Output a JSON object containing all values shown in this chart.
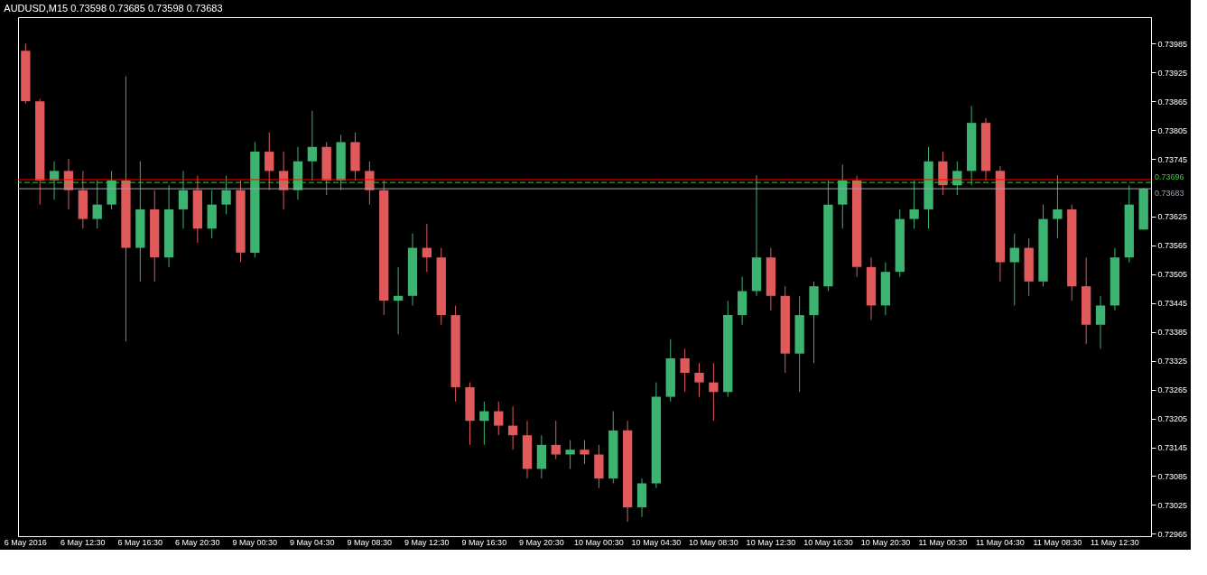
{
  "chart_data": {
    "type": "candlestick",
    "title": "AUDUSD,M15 0.73598 0.73685 0.73598 0.73683",
    "categories": [
      "6 May 2016",
      null,
      null,
      null,
      "6 May 12:30",
      null,
      null,
      null,
      "6 May 16:30",
      null,
      null,
      null,
      "6 May 20:30",
      null,
      null,
      null,
      "9 May 00:30",
      null,
      null,
      null,
      "9 May 04:30",
      null,
      null,
      null,
      "9 May 08:30",
      null,
      null,
      null,
      "9 May 12:30",
      null,
      null,
      null,
      "9 May 16:30",
      null,
      null,
      null,
      "9 May 20:30",
      null,
      null,
      null,
      "10 May 00:30",
      null,
      null,
      null,
      "10 May 04:30",
      null,
      null,
      null,
      "10 May 08:30",
      null,
      null,
      null,
      "10 May 12:30",
      null,
      null,
      null,
      "10 May 16:30",
      null,
      null,
      null,
      "10 May 20:30",
      null,
      null,
      null,
      "11 May 00:30",
      null,
      null,
      null,
      "11 May 04:30",
      null,
      null,
      null,
      "11 May 08:30",
      null,
      null,
      null,
      "11 May 12:30",
      null,
      null
    ],
    "ohlc": [
      [
        0.7397,
        0.73985,
        0.7386,
        0.73865
      ],
      [
        0.73865,
        0.7387,
        0.7365,
        0.737
      ],
      [
        0.737,
        0.7374,
        0.7366,
        0.7372
      ],
      [
        0.7372,
        0.73745,
        0.7364,
        0.7368
      ],
      [
        0.7368,
        0.7372,
        0.736,
        0.7362
      ],
      [
        0.7362,
        0.737,
        0.736,
        0.7365
      ],
      [
        0.7365,
        0.7372,
        0.7364,
        0.737
      ],
      [
        0.737,
        0.73917,
        0.73365,
        0.7356
      ],
      [
        0.7356,
        0.7374,
        0.7349,
        0.7364
      ],
      [
        0.7364,
        0.7368,
        0.7349,
        0.7354
      ],
      [
        0.7354,
        0.7369,
        0.7352,
        0.7364
      ],
      [
        0.7364,
        0.7372,
        0.736,
        0.7368
      ],
      [
        0.7368,
        0.7371,
        0.7357,
        0.736
      ],
      [
        0.736,
        0.7368,
        0.7358,
        0.7365
      ],
      [
        0.7365,
        0.7371,
        0.7363,
        0.7368
      ],
      [
        0.7368,
        0.737,
        0.7353,
        0.7355
      ],
      [
        0.7355,
        0.7378,
        0.7354,
        0.7376
      ],
      [
        0.7376,
        0.738,
        0.7368,
        0.7372
      ],
      [
        0.7372,
        0.7376,
        0.7364,
        0.7368
      ],
      [
        0.7368,
        0.7377,
        0.7366,
        0.7374
      ],
      [
        0.7374,
        0.73845,
        0.737,
        0.7377
      ],
      [
        0.7377,
        0.7378,
        0.7367,
        0.737
      ],
      [
        0.737,
        0.73795,
        0.7368,
        0.7378
      ],
      [
        0.7378,
        0.738,
        0.737,
        0.7372
      ],
      [
        0.7372,
        0.7374,
        0.7365,
        0.7368
      ],
      [
        0.7368,
        0.737,
        0.7342,
        0.7345
      ],
      [
        0.7345,
        0.7352,
        0.7338,
        0.7346
      ],
      [
        0.7346,
        0.7359,
        0.7344,
        0.7356
      ],
      [
        0.7356,
        0.7361,
        0.7351,
        0.7354
      ],
      [
        0.7354,
        0.7356,
        0.734,
        0.7342
      ],
      [
        0.7342,
        0.7344,
        0.7324,
        0.7327
      ],
      [
        0.7327,
        0.7328,
        0.7315,
        0.732
      ],
      [
        0.732,
        0.7324,
        0.7315,
        0.7322
      ],
      [
        0.7322,
        0.7324,
        0.7317,
        0.7319
      ],
      [
        0.7319,
        0.7323,
        0.7314,
        0.7317
      ],
      [
        0.7317,
        0.732,
        0.7308,
        0.731
      ],
      [
        0.731,
        0.7317,
        0.7308,
        0.7315
      ],
      [
        0.7315,
        0.732,
        0.7312,
        0.7313
      ],
      [
        0.7313,
        0.7316,
        0.731,
        0.7314
      ],
      [
        0.7314,
        0.7316,
        0.7311,
        0.7313
      ],
      [
        0.7313,
        0.7315,
        0.7306,
        0.7308
      ],
      [
        0.7308,
        0.7322,
        0.7307,
        0.7318
      ],
      [
        0.7318,
        0.732,
        0.7299,
        0.7302
      ],
      [
        0.7302,
        0.7308,
        0.73,
        0.7307
      ],
      [
        0.7307,
        0.7328,
        0.7306,
        0.7325
      ],
      [
        0.7325,
        0.7337,
        0.7324,
        0.7333
      ],
      [
        0.7333,
        0.7335,
        0.7326,
        0.733
      ],
      [
        0.733,
        0.7332,
        0.7325,
        0.7328
      ],
      [
        0.7328,
        0.7332,
        0.732,
        0.7326
      ],
      [
        0.7326,
        0.7345,
        0.7325,
        0.7342
      ],
      [
        0.7342,
        0.735,
        0.734,
        0.7347
      ],
      [
        0.7347,
        0.73711,
        0.7346,
        0.7354
      ],
      [
        0.7354,
        0.7356,
        0.7343,
        0.7346
      ],
      [
        0.7346,
        0.7348,
        0.733,
        0.7334
      ],
      [
        0.7334,
        0.7346,
        0.7326,
        0.7342
      ],
      [
        0.7342,
        0.7349,
        0.7332,
        0.7348
      ],
      [
        0.7348,
        0.737,
        0.7347,
        0.7365
      ],
      [
        0.7365,
        0.73733,
        0.736,
        0.737
      ],
      [
        0.737,
        0.7371,
        0.735,
        0.7352
      ],
      [
        0.7352,
        0.7354,
        0.7341,
        0.7344
      ],
      [
        0.7344,
        0.7353,
        0.7342,
        0.7351
      ],
      [
        0.7351,
        0.7364,
        0.735,
        0.7362
      ],
      [
        0.7362,
        0.737,
        0.736,
        0.7364
      ],
      [
        0.7364,
        0.7377,
        0.736,
        0.7374
      ],
      [
        0.7374,
        0.7376,
        0.7367,
        0.7369
      ],
      [
        0.7369,
        0.7374,
        0.7367,
        0.7372
      ],
      [
        0.7372,
        0.73855,
        0.7369,
        0.7382
      ],
      [
        0.7382,
        0.7383,
        0.737,
        0.7372
      ],
      [
        0.7372,
        0.7373,
        0.7349,
        0.7353
      ],
      [
        0.7353,
        0.7359,
        0.7344,
        0.7356
      ],
      [
        0.7356,
        0.7358,
        0.7346,
        0.7349
      ],
      [
        0.7349,
        0.7365,
        0.7348,
        0.7362
      ],
      [
        0.7362,
        0.73711,
        0.7358,
        0.7364
      ],
      [
        0.7364,
        0.7365,
        0.7345,
        0.7348
      ],
      [
        0.7348,
        0.7354,
        0.7336,
        0.734
      ],
      [
        0.734,
        0.7346,
        0.7335,
        0.7344
      ],
      [
        0.7344,
        0.7356,
        0.7343,
        0.7354
      ],
      [
        0.7354,
        0.7369,
        0.7353,
        0.7365
      ],
      [
        0.73598,
        0.73685,
        0.73598,
        0.73683
      ]
    ],
    "colors": [
      "#e0595b",
      "#e0595b",
      "#3cb371",
      "#e0595b",
      "#e0595b",
      "#3cb371",
      "#3cb371",
      "#e0595b",
      "#3cb371",
      "#e0595b",
      "#3cb371",
      "#3cb371",
      "#e0595b",
      "#3cb371",
      "#3cb371",
      "#e0595b",
      "#3cb371",
      "#e0595b",
      "#e0595b",
      "#3cb371",
      "#3cb371",
      "#e0595b",
      "#3cb371",
      "#e0595b",
      "#e0595b",
      "#e0595b",
      "#3cb371",
      "#3cb371",
      "#e0595b",
      "#e0595b",
      "#e0595b",
      "#e0595b",
      "#3cb371",
      "#e0595b",
      "#e0595b",
      "#e0595b",
      "#3cb371",
      "#e0595b",
      "#3cb371",
      "#e0595b",
      "#e0595b",
      "#3cb371",
      "#e0595b",
      "#3cb371",
      "#3cb371",
      "#3cb371",
      "#e0595b",
      "#e0595b",
      "#e0595b",
      "#3cb371",
      "#3cb371",
      "#3cb371",
      "#e0595b",
      "#e0595b",
      "#3cb371",
      "#3cb371",
      "#3cb371",
      "#3cb371",
      "#e0595b",
      "#e0595b",
      "#3cb371",
      "#3cb371",
      "#3cb371",
      "#3cb371",
      "#e0595b",
      "#3cb371",
      "#3cb371",
      "#e0595b",
      "#e0595b",
      "#3cb371",
      "#e0595b",
      "#3cb371",
      "#3cb371",
      "#e0595b",
      "#e0595b",
      "#3cb371",
      "#3cb371",
      "#3cb371",
      "#3cb371"
    ],
    "ylim": [
      0.7296,
      0.7404
    ],
    "yticks": [
      0.72965,
      0.73025,
      0.73085,
      0.73145,
      0.73205,
      0.73265,
      0.73325,
      0.73385,
      0.73445,
      0.73505,
      0.73565,
      0.73625,
      0.73745,
      0.73805,
      0.73865,
      0.73925,
      0.73985
    ],
    "ref_lines": [
      {
        "axis": "y",
        "value": 0.73702,
        "color": "#ff0000",
        "line_style": "solid"
      },
      {
        "axis": "y",
        "value": 0.73696,
        "label": "0.73696",
        "color": "#33cc33",
        "line_style": "dashed"
      },
      {
        "axis": "y",
        "value": 0.73683,
        "label": "0.73683",
        "color": "#a0a0b0",
        "line_style": "solid"
      }
    ],
    "grid": false
  }
}
